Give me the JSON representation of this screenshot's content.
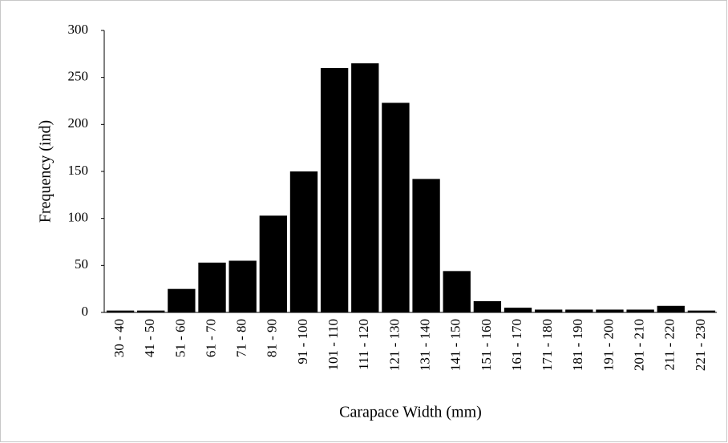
{
  "chart_data": {
    "type": "bar",
    "x_label": "Carapace Width (mm)",
    "y_label": "Frequency (ind)",
    "categories": [
      "30 - 40",
      "41 - 50",
      "51 - 60",
      "61 - 70",
      "71 - 80",
      "81 - 90",
      "91 - 100",
      "101 - 110",
      "111 - 120",
      "121 - 130",
      "131 - 140",
      "141 - 150",
      "151 - 160",
      "161 - 170",
      "171 - 180",
      "181 - 190",
      "191 - 200",
      "201 - 210",
      "211 - 220",
      "221 - 230"
    ],
    "values": [
      2,
      2,
      25,
      53,
      55,
      103,
      150,
      260,
      265,
      223,
      142,
      44,
      12,
      5,
      3,
      3,
      3,
      3,
      7,
      2
    ],
    "color": "#000000",
    "ylim": [
      0,
      300
    ],
    "yticks": [
      0,
      50,
      100,
      150,
      200,
      250,
      300
    ],
    "grid": false
  }
}
